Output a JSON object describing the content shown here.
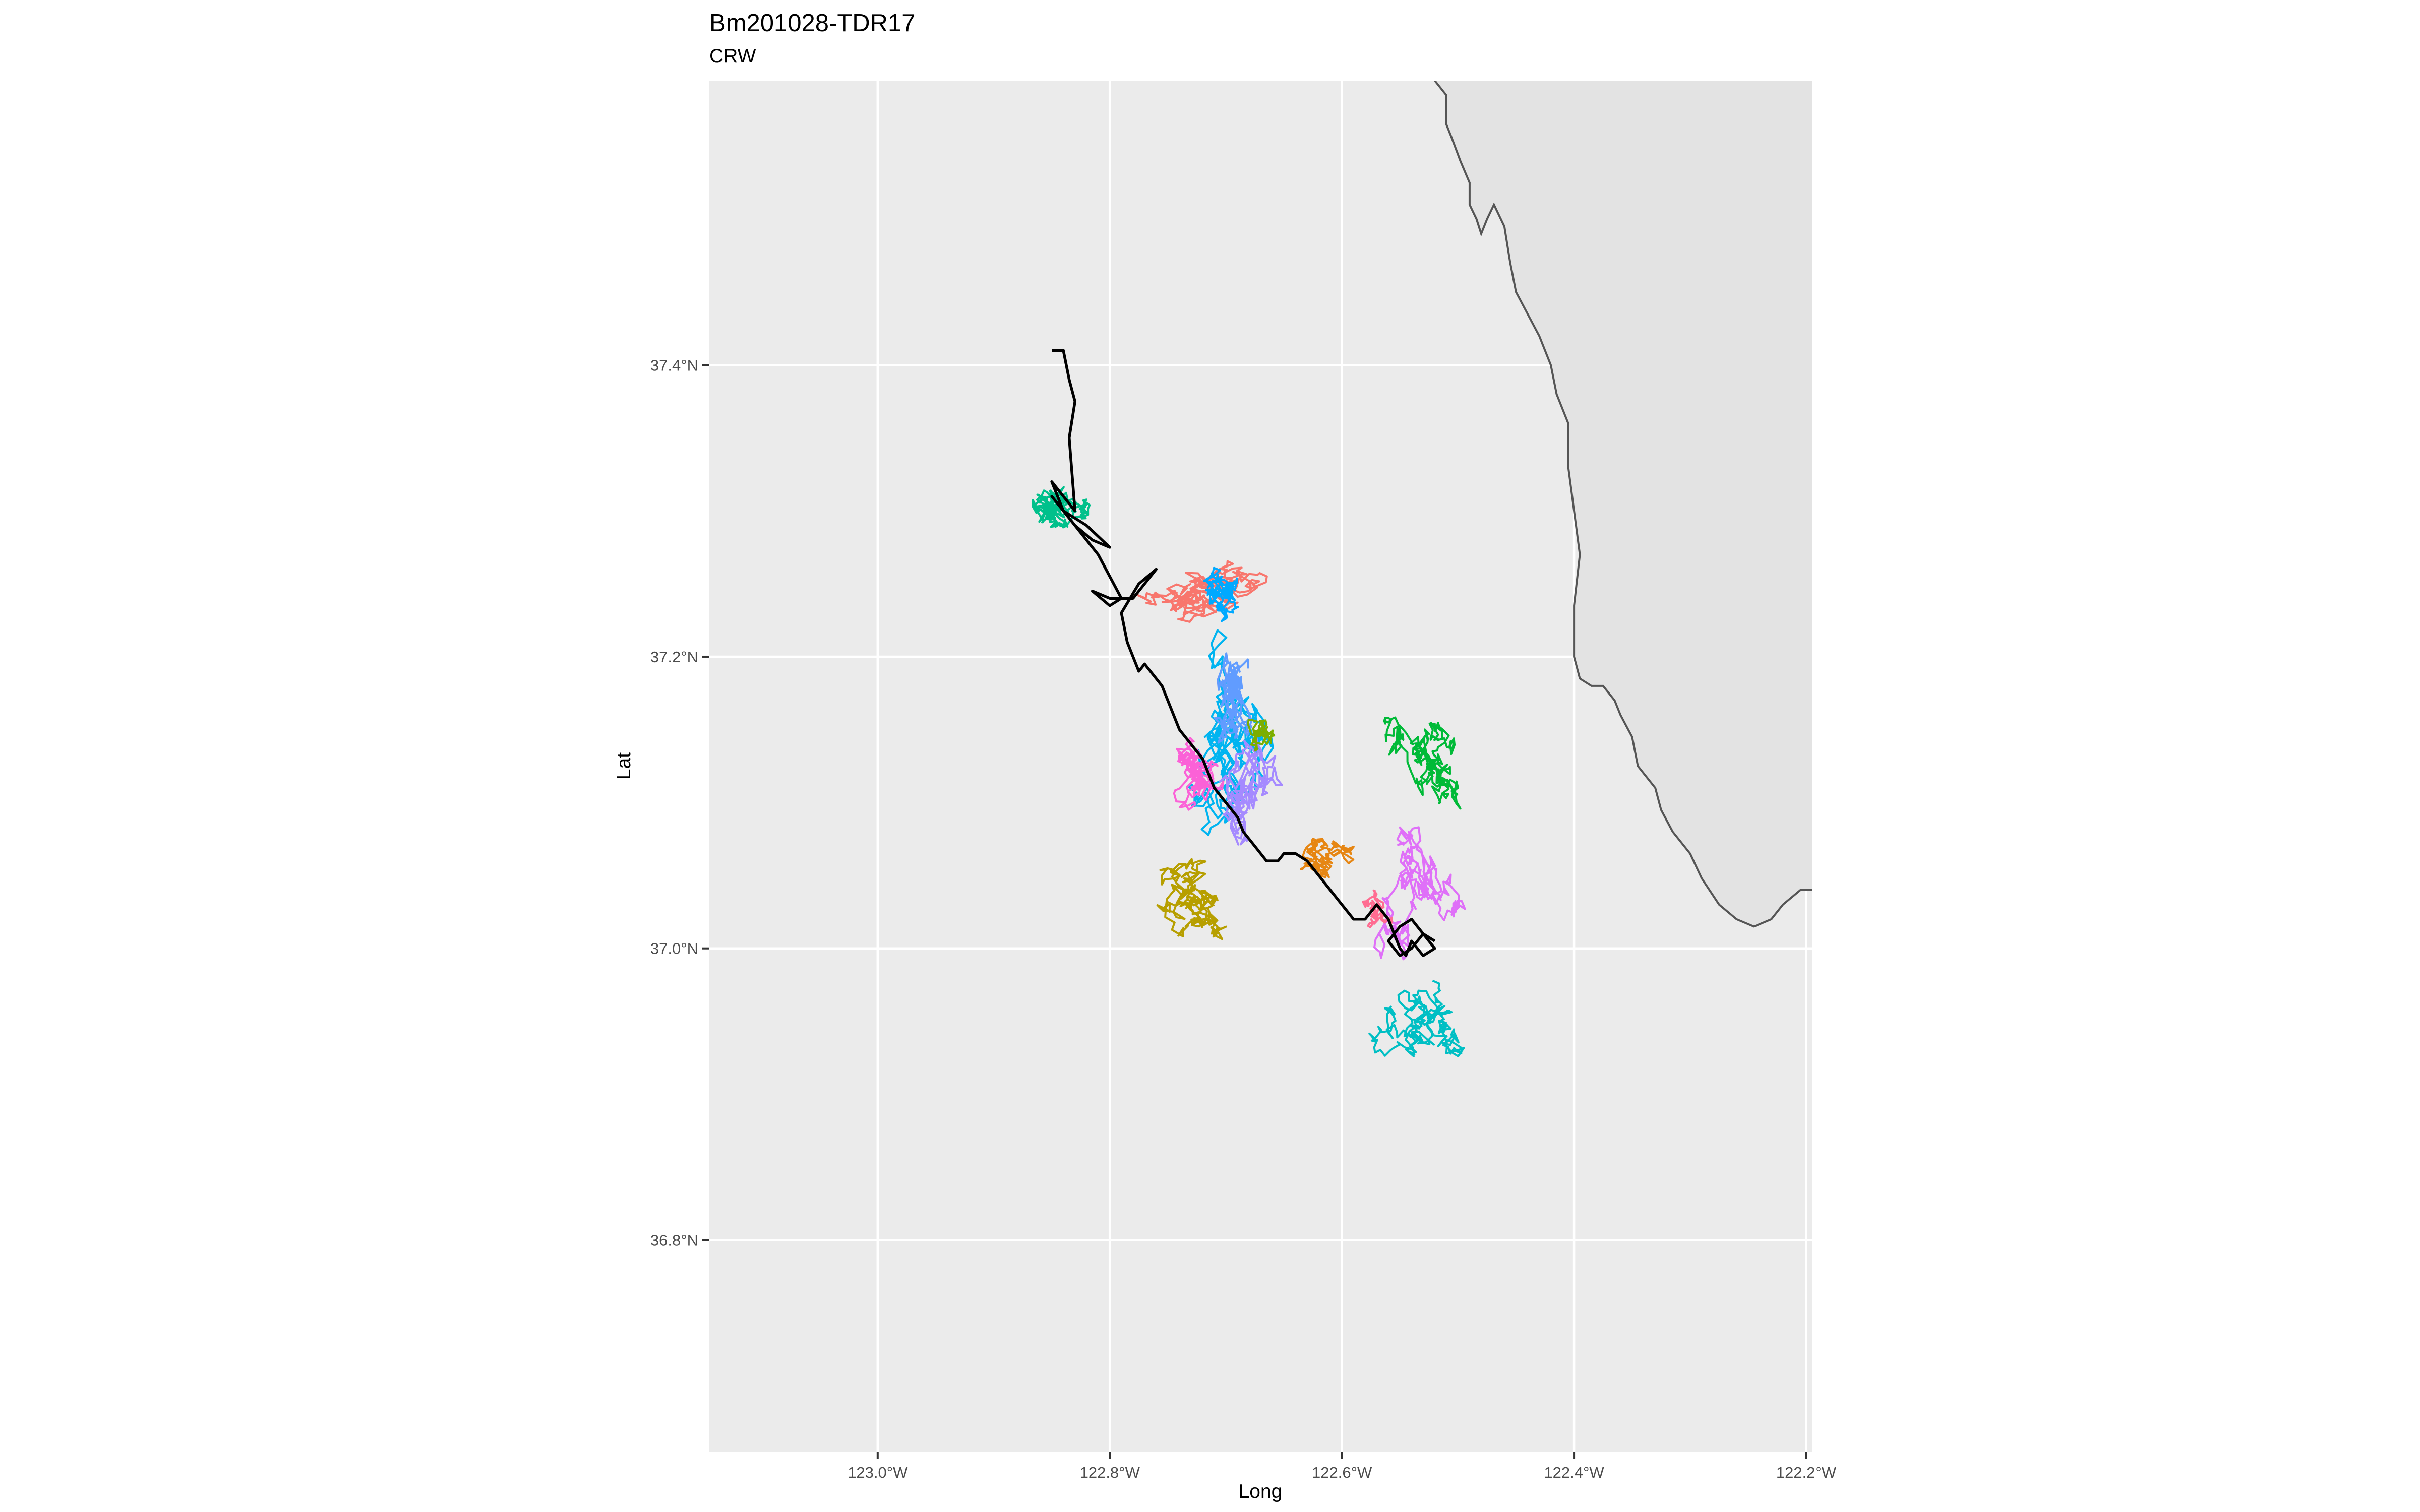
{
  "chart_data": {
    "type": "line",
    "title": "Bm201028-TDR17",
    "subtitle": "CRW",
    "xlabel": "Long",
    "ylabel": "Lat",
    "xlim": [
      -123.145,
      -122.195
    ],
    "ylim": [
      36.655,
      37.595
    ],
    "x_ticks": [
      -123.0,
      -122.8,
      -122.6,
      -122.4,
      -122.2
    ],
    "x_tick_labels": [
      "123.0°W",
      "122.8°W",
      "122.6°W",
      "122.4°W",
      "122.2°W"
    ],
    "y_ticks": [
      36.8,
      37.0,
      37.2,
      37.4
    ],
    "y_tick_labels": [
      "36.8°N",
      "37.0°N",
      "37.2°N",
      "37.4°N"
    ],
    "grid": true,
    "legend": "none",
    "colors": {
      "panel_background": "#ebebeb",
      "grid": "#ffffff",
      "land": "#e3e3e3",
      "coast": "#555555",
      "observed_track": "#000000"
    },
    "coastline": {
      "lon": [
        -122.52,
        -122.51,
        -122.51,
        -122.505,
        -122.498,
        -122.49,
        -122.49,
        -122.484,
        -122.48,
        -122.475,
        -122.469,
        -122.46,
        -122.455,
        -122.45,
        -122.44,
        -122.43,
        -122.42,
        -122.415,
        -122.405,
        -122.405,
        -122.4,
        -122.395,
        -122.4,
        -122.4,
        -122.395,
        -122.385,
        -122.375,
        -122.365,
        -122.36,
        -122.35,
        -122.345,
        -122.34,
        -122.33,
        -122.325,
        -122.315,
        -122.3,
        -122.29,
        -122.275,
        -122.26,
        -122.245,
        -122.23,
        -122.22,
        -122.205,
        -122.195
      ],
      "lat": [
        37.595,
        37.585,
        37.565,
        37.555,
        37.54,
        37.525,
        37.51,
        37.5,
        37.49,
        37.5,
        37.51,
        37.495,
        37.47,
        37.45,
        37.435,
        37.42,
        37.4,
        37.38,
        37.36,
        37.33,
        37.3,
        37.27,
        37.235,
        37.2,
        37.185,
        37.18,
        37.18,
        37.17,
        37.16,
        37.145,
        37.125,
        37.12,
        37.11,
        37.095,
        37.08,
        37.065,
        37.048,
        37.03,
        37.02,
        37.015,
        37.02,
        37.03,
        37.04,
        37.04
      ]
    },
    "series": [
      {
        "color": "#f8766d",
        "seed": 11,
        "center": [
          -122.73,
          37.25
        ],
        "spread": [
          0.09,
          0.045
        ],
        "points": 240
      },
      {
        "color": "#b79f00",
        "seed": 23,
        "center": [
          -122.71,
          37.03
        ],
        "spread": [
          0.07,
          0.05
        ],
        "points": 220
      },
      {
        "color": "#00ba38",
        "seed": 37,
        "center": [
          -122.52,
          37.12
        ],
        "spread": [
          0.05,
          0.06
        ],
        "points": 220
      },
      {
        "color": "#00c08b",
        "seed": 41,
        "center": [
          -122.84,
          37.3
        ],
        "spread": [
          0.05,
          0.04
        ],
        "points": 220
      },
      {
        "color": "#00bfc4",
        "seed": 53,
        "center": [
          -122.53,
          36.95
        ],
        "spread": [
          0.06,
          0.05
        ],
        "points": 220
      },
      {
        "color": "#00b4f0",
        "seed": 67,
        "center": [
          -122.69,
          37.15
        ],
        "spread": [
          0.07,
          0.09
        ],
        "points": 280
      },
      {
        "color": "#619cff",
        "seed": 71,
        "center": [
          -122.7,
          37.18
        ],
        "spread": [
          0.05,
          0.07
        ],
        "points": 200
      },
      {
        "color": "#a58aff",
        "seed": 83,
        "center": [
          -122.68,
          37.12
        ],
        "spread": [
          0.05,
          0.07
        ],
        "points": 220
      },
      {
        "color": "#df70f8",
        "seed": 97,
        "center": [
          -122.55,
          37.05
        ],
        "spread": [
          0.05,
          0.07
        ],
        "points": 220
      },
      {
        "color": "#fb61d7",
        "seed": 101,
        "center": [
          -122.72,
          37.12
        ],
        "spread": [
          0.06,
          0.05
        ],
        "points": 200
      },
      {
        "color": "#ff6c91",
        "seed": 113,
        "center": [
          -122.57,
          37.03
        ],
        "spread": [
          0.03,
          0.03
        ],
        "points": 80
      },
      {
        "color": "#e68613",
        "seed": 127,
        "center": [
          -122.61,
          37.06
        ],
        "spread": [
          0.05,
          0.03
        ],
        "points": 160
      },
      {
        "color": "#7cae00",
        "seed": 131,
        "center": [
          -122.67,
          37.15
        ],
        "spread": [
          0.04,
          0.04
        ],
        "points": 80
      },
      {
        "color": "#00a9ff",
        "seed": 139,
        "center": [
          -122.7,
          37.24
        ],
        "spread": [
          0.05,
          0.04
        ],
        "points": 160
      }
    ],
    "observed_track": {
      "lon": [
        -122.85,
        -122.84,
        -122.835,
        -122.83,
        -122.835,
        -122.832,
        -122.83,
        -122.84,
        -122.85,
        -122.84,
        -122.83,
        -122.815,
        -122.8,
        -122.82,
        -122.84,
        -122.85,
        -122.83,
        -122.81,
        -122.79,
        -122.8,
        -122.815,
        -122.8,
        -122.78,
        -122.76,
        -122.775,
        -122.79,
        -122.785,
        -122.78,
        -122.775,
        -122.77,
        -122.765,
        -122.755,
        -122.745,
        -122.74,
        -122.73,
        -122.72,
        -122.71,
        -122.7,
        -122.69,
        -122.685,
        -122.675,
        -122.665,
        -122.655,
        -122.65,
        -122.64,
        -122.63,
        -122.62,
        -122.61,
        -122.6,
        -122.59,
        -122.58,
        -122.57,
        -122.56,
        -122.555,
        -122.55,
        -122.545,
        -122.54,
        -122.535,
        -122.53,
        -122.52,
        -122.53,
        -122.54,
        -122.55,
        -122.56,
        -122.55,
        -122.54,
        -122.53,
        -122.52
      ],
      "lat": [
        37.41,
        37.41,
        37.39,
        37.375,
        37.35,
        37.32,
        37.3,
        37.31,
        37.32,
        37.3,
        37.29,
        37.28,
        37.275,
        37.29,
        37.3,
        37.31,
        37.29,
        37.27,
        37.24,
        37.235,
        37.245,
        37.24,
        37.24,
        37.26,
        37.25,
        37.23,
        37.21,
        37.2,
        37.19,
        37.195,
        37.19,
        37.18,
        37.16,
        37.15,
        37.14,
        37.13,
        37.11,
        37.1,
        37.09,
        37.08,
        37.07,
        37.06,
        37.06,
        37.065,
        37.065,
        37.06,
        37.05,
        37.04,
        37.03,
        37.02,
        37.02,
        37.03,
        37.02,
        37.01,
        37.0,
        36.995,
        37.005,
        37.0,
        36.995,
        37.0,
        37.01,
        37.02,
        37.015,
        37.005,
        36.995,
        37.0,
        37.01,
        37.005
      ]
    }
  }
}
